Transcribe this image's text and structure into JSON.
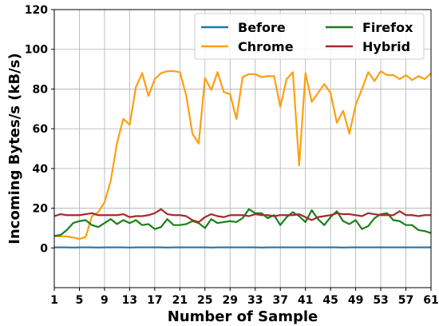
{
  "chart_data": {
    "type": "line",
    "title": "",
    "xlabel": "Number of Sample",
    "ylabel": "Incoming Bytes/s (kB/s)",
    "xlim": [
      1,
      61
    ],
    "ylim": [
      -20,
      120
    ],
    "x_ticks": [
      "1",
      "5",
      "9",
      "13",
      "17",
      "21",
      "25",
      "29",
      "33",
      "37",
      "41",
      "45",
      "49",
      "53",
      "57",
      "61"
    ],
    "y_ticks": [
      "0",
      "20",
      "40",
      "60",
      "80",
      "100",
      "120"
    ],
    "grid": true,
    "legend_placement": "top-right",
    "x": [
      1,
      2,
      3,
      4,
      5,
      6,
      7,
      8,
      9,
      10,
      11,
      12,
      13,
      14,
      15,
      16,
      17,
      18,
      19,
      20,
      21,
      22,
      23,
      24,
      25,
      26,
      27,
      28,
      29,
      30,
      31,
      32,
      33,
      34,
      35,
      36,
      37,
      38,
      39,
      40,
      41,
      42,
      43,
      44,
      45,
      46,
      47,
      48,
      49,
      50,
      51,
      52,
      53,
      54,
      55,
      56,
      57,
      58,
      59,
      60,
      61
    ],
    "series": [
      {
        "name": "Before",
        "color": "#1f77b4",
        "values": [
          0.3,
          0.3,
          0.3,
          0.2,
          0.3,
          0.3,
          0.3,
          0.2,
          0.3,
          0.3,
          0.3,
          0.3,
          0.2,
          0.3,
          0.3,
          0.3,
          0.3,
          0.3,
          0.2,
          0.3,
          0.3,
          0.3,
          0.3,
          0.3,
          0.3,
          0.2,
          0.3,
          0.3,
          0.3,
          0.3,
          0.3,
          0.3,
          0.3,
          0.2,
          0.3,
          0.3,
          0.3,
          0.3,
          0.3,
          0.3,
          0.3,
          0.3,
          0.3,
          0.3,
          0.3,
          0.3,
          0.2,
          0.3,
          0.3,
          0.3,
          0.3,
          0.3,
          0.3,
          0.3,
          0.3,
          0.3,
          0.3,
          0.3,
          0.3,
          0.3,
          0.3
        ]
      },
      {
        "name": "Chrome",
        "color": "#ff9f0f",
        "values": [
          6,
          5.8,
          5.8,
          5.2,
          4.5,
          5.5,
          16,
          18,
          23,
          34,
          53,
          65,
          62,
          81,
          88,
          76.5,
          85,
          88,
          89,
          89,
          88.5,
          77,
          57.5,
          52.5,
          85.5,
          79.5,
          88.5,
          78.5,
          77.5,
          65,
          86,
          87.5,
          87.5,
          86,
          86.5,
          86.5,
          71,
          85,
          88.5,
          41.5,
          88,
          73.5,
          78,
          82.5,
          78,
          63,
          69,
          57.5,
          72,
          80,
          88.5,
          84,
          89,
          87,
          87,
          85,
          87,
          84.5,
          86.5,
          85,
          88
        ]
      },
      {
        "name": "Firefox",
        "color": "#1b7f1b",
        "values": [
          6,
          6.5,
          9,
          12.5,
          13.5,
          14,
          11.5,
          10.5,
          12.5,
          14.5,
          12,
          14,
          12.5,
          14,
          11.5,
          12,
          9.5,
          10.5,
          14.5,
          11.5,
          11.5,
          12,
          13.5,
          12.5,
          10,
          14.5,
          12.5,
          13,
          13.5,
          13,
          15,
          19.5,
          17.5,
          17.5,
          15,
          16.5,
          11.5,
          15.5,
          18,
          16,
          13,
          19,
          14.5,
          11.5,
          15.5,
          18.5,
          13.5,
          12,
          14,
          9.5,
          11,
          15,
          17,
          17.5,
          14,
          13.5,
          11.5,
          11.5,
          9,
          8.5,
          7.5
        ]
      },
      {
        "name": "Hybrid",
        "color": "#a52a2a",
        "values": [
          16,
          17,
          16.5,
          16.5,
          16.5,
          17,
          17.5,
          16.5,
          16.5,
          16.5,
          16.5,
          17,
          15.5,
          16,
          16,
          16.5,
          17.5,
          19.5,
          17,
          16.5,
          16.5,
          16,
          14,
          13,
          15.5,
          17,
          16,
          15.5,
          16.5,
          16.5,
          16.5,
          16,
          17,
          16.5,
          16.5,
          16,
          16.5,
          16.5,
          16.5,
          17,
          15.5,
          14,
          15.5,
          16,
          16.5,
          17.5,
          17,
          17,
          16.5,
          16,
          17.5,
          17,
          16.5,
          16.5,
          16.5,
          18.5,
          16.5,
          16.5,
          16,
          16.5,
          16.5
        ]
      }
    ]
  }
}
